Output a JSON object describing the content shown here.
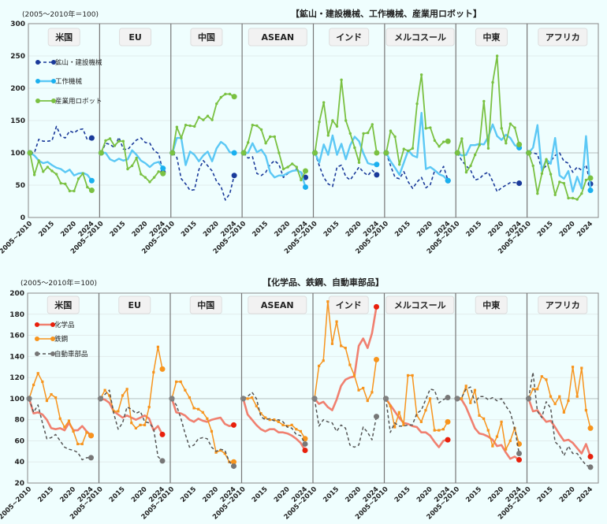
{
  "colors": {
    "background": "#effefe",
    "mining": "#1a3a9a",
    "tools": "#5bc8f5",
    "robots": "#7ac142",
    "chemicals": "#f08070",
    "chemicals_marker": "#e8200c",
    "steel": "#f7941d",
    "auto_parts": "#555555"
  },
  "chart_data": [
    {
      "type": "line",
      "title": "【鉱山・建設機械、工作機械、産業用ロボット】",
      "unit_label": "(2005～2010年＝100)",
      "ylim": [
        0,
        300
      ],
      "yticks": [
        0,
        50,
        100,
        150,
        200,
        250,
        300
      ],
      "grid": true,
      "legend_placement": "top-left panel",
      "x": [
        "2005~2010",
        "2011",
        "2012",
        "2013",
        "2014",
        "2015",
        "2016",
        "2017",
        "2018",
        "2019",
        "2020",
        "2021",
        "2022",
        "2023",
        "2024"
      ],
      "xtick_labels": [
        "2005~2010",
        "2015",
        "2020",
        "2024"
      ],
      "series_names": [
        "鉱山・建設機械",
        "工作機械",
        "産業用ロボット"
      ],
      "series_styles": [
        "dashed",
        "solid",
        "solid-marker"
      ],
      "panels": [
        {
          "name": "米国",
          "series": [
            [
              100,
              100,
              121,
              118,
              118,
              119,
              141,
              126,
              123,
              134,
              131,
              136,
              137,
              120,
              123
            ],
            [
              100,
              96,
              88,
              84,
              86,
              81,
              77,
              75,
              70,
              74,
              65,
              68,
              69,
              66,
              57
            ],
            [
              100,
              66,
              88,
              71,
              78,
              72,
              67,
              53,
              52,
              41,
              41,
              60,
              68,
              47,
              42
            ]
          ]
        },
        {
          "name": "EU",
          "series": [
            [
              100,
              115,
              113,
              108,
              124,
              106,
              105,
              113,
              120,
              123,
              116,
              115,
              103,
              99,
              70
            ],
            [
              100,
              100,
              90,
              87,
              91,
              88,
              90,
              104,
              97,
              88,
              84,
              78,
              84,
              86,
              76
            ],
            [
              100,
              119,
              122,
              111,
              118,
              118,
              75,
              80,
              92,
              67,
              62,
              55,
              62,
              71,
              68
            ]
          ]
        },
        {
          "name": "中国",
          "series": [
            [
              100,
              93,
              60,
              52,
              42,
              43,
              74,
              88,
              80,
              72,
              56,
              48,
              27,
              37,
              65
            ],
            [
              100,
              123,
              123,
              81,
              102,
              97,
              87,
              96,
              102,
              87,
              107,
              117,
              112,
              101,
              100
            ],
            [
              100,
              140,
              123,
              143,
              142,
              141,
              155,
              151,
              157,
              151,
              176,
              186,
              191,
              191,
              187
            ]
          ]
        },
        {
          "name": "ASEAN",
          "series": [
            [
              100,
              92,
              94,
              68,
              65,
              70,
              82,
              88,
              82,
              62,
              68,
              72,
              75,
              70,
              62
            ],
            [
              100,
              100,
              115,
              101,
              105,
              95,
              70,
              62,
              65,
              65,
              69,
              72,
              73,
              70,
              47
            ],
            [
              100,
              116,
              143,
              142,
              136,
              115,
              125,
              125,
              100,
              75,
              78,
              83,
              78,
              58,
              72
            ]
          ]
        },
        {
          "name": "インド",
          "series": [
            [
              100,
              80,
              62,
              52,
              48,
              78,
              81,
              63,
              58,
              68,
              78,
              70,
              65,
              73,
              66
            ],
            [
              100,
              85,
              113,
              97,
              127,
              97,
              114,
              90,
              112,
              125,
              118,
              99,
              84,
              82,
              82
            ],
            [
              100,
              148,
              178,
              127,
              150,
              141,
              213,
              150,
              130,
              108,
              85,
              130,
              131,
              144,
              100
            ]
          ]
        },
        {
          "name": "メルコスール",
          "series": [
            [
              100,
              80,
              62,
              60,
              71,
              55,
              45,
              55,
              62,
              46,
              51,
              73,
              68,
              79,
              57
            ],
            [
              100,
              87,
              77,
              66,
              85,
              104,
              96,
              93,
              162,
              75,
              78,
              73,
              67,
              64,
              57
            ],
            [
              100,
              134,
              125,
              82,
              106,
              103,
              107,
              176,
              221,
              138,
              139,
              119,
              110,
              117,
              118
            ]
          ]
        },
        {
          "name": "中東",
          "series": [
            [
              100,
              88,
              80,
              73,
              58,
              60,
              67,
              70,
              56,
              40,
              46,
              50,
              54,
              54,
              53
            ],
            [
              100,
              96,
              97,
              112,
              112,
              114,
              113,
              125,
              144,
              126,
              120,
              128,
              123,
              112,
              108
            ],
            [
              100,
              122,
              70,
              80,
              97,
              112,
              180,
              107,
              209,
              250,
              138,
              115,
              145,
              139,
              113
            ]
          ]
        },
        {
          "name": "アフリカ",
          "series": [
            [
              100,
              100,
              98,
              74,
              80,
              87,
              96,
              100,
              87,
              84,
              70,
              78,
              73,
              81,
              52
            ],
            [
              100,
              108,
              143,
              72,
              90,
              83,
              123,
              65,
              60,
              72,
              40,
              63,
              45,
              126,
              42
            ],
            [
              100,
              80,
              37,
              68,
              90,
              67,
              35,
              55,
              53,
              30,
              30,
              28,
              37,
              58,
              61
            ]
          ]
        }
      ]
    },
    {
      "type": "line",
      "title": "【化学品、鉄鋼、自動車部品】",
      "unit_label": "(2005～2010年＝100)",
      "ylim": [
        20,
        200
      ],
      "yticks": [
        20,
        40,
        60,
        80,
        100,
        120,
        140,
        160,
        180,
        200
      ],
      "grid": true,
      "legend_placement": "top-left panel",
      "x": [
        "2005~2010",
        "2011",
        "2012",
        "2013",
        "2014",
        "2015",
        "2016",
        "2017",
        "2018",
        "2019",
        "2020",
        "2021",
        "2022",
        "2023",
        "2024"
      ],
      "xtick_labels": [
        "2005~2010",
        "2015",
        "2020",
        "2024"
      ],
      "series_names": [
        "化学品",
        "鉄鋼",
        "自動車部品"
      ],
      "series_styles": [
        "solid-thick",
        "solid-marker",
        "dashed"
      ],
      "panels": [
        {
          "name": "米国",
          "series": [
            [
              100,
              86,
              87,
              85,
              80,
              72,
              71,
              72,
              70,
              77,
              70,
              70,
              74,
              69,
              65
            ],
            [
              100,
              113,
              124,
              116,
              98,
              104,
              101,
              81,
              73,
              79,
              69,
              57,
              57,
              68,
              65
            ],
            [
              100,
              87,
              94,
              77,
              62,
              63,
              66,
              60,
              54,
              52,
              51,
              49,
              42,
              44,
              44
            ]
          ]
        },
        {
          "name": "EU",
          "series": [
            [
              100,
              99,
              96,
              88,
              85,
              82,
              84,
              82,
              80,
              82,
              84,
              81,
              70,
              74,
              66
            ],
            [
              100,
              108,
              103,
              88,
              88,
              103,
              109,
              77,
              72,
              75,
              75,
              92,
              125,
              149,
              128
            ],
            [
              100,
              104,
              108,
              86,
              71,
              77,
              92,
              90,
              86,
              88,
              78,
              77,
              72,
              45,
              41
            ]
          ]
        },
        {
          "name": "中国",
          "series": [
            [
              100,
              87,
              86,
              84,
              80,
              78,
              81,
              79,
              78,
              80,
              81,
              82,
              76,
              74,
              75
            ],
            [
              100,
              116,
              116,
              108,
              101,
              91,
              90,
              87,
              81,
              69,
              49,
              51,
              48,
              40,
              40
            ],
            [
              100,
              94,
              82,
              67,
              54,
              56,
              62,
              63,
              62,
              54,
              50,
              52,
              51,
              40,
              36
            ]
          ]
        },
        {
          "name": "ASEAN",
          "series": [
            [
              100,
              85,
              80,
              75,
              71,
              69,
              71,
              71,
              68,
              68,
              67,
              65,
              62,
              58,
              51
            ],
            [
              100,
              100,
              101,
              93,
              86,
              82,
              80,
              80,
              78,
              75,
              74,
              75,
              71,
              69,
              62
            ],
            [
              100,
              102,
              106,
              100,
              83,
              80,
              81,
              79,
              80,
              78,
              73,
              72,
              66,
              65,
              57
            ]
          ]
        },
        {
          "name": "インド",
          "series": [
            [
              100,
              95,
              97,
              92,
              89,
              99,
              112,
              118,
              120,
              121,
              150,
              157,
              148,
              162,
              187
            ],
            [
              100,
              131,
              136,
              192,
              152,
              173,
              150,
              148,
              132,
              122,
              108,
              110,
              98,
              106,
              137
            ],
            [
              100,
              74,
              80,
              78,
              77,
              69,
              75,
              72,
              56,
              54,
              56,
              73,
              68,
              61,
              83
            ]
          ]
        },
        {
          "name": "メルコスール",
          "series": [
            [
              100,
              94,
              88,
              82,
              77,
              76,
              74,
              73,
              68,
              68,
              65,
              59,
              54,
              60,
              61
            ],
            [
              100,
              93,
              73,
              87,
              75,
              122,
              122,
              84,
              78,
              89,
              100,
              70,
              70,
              71,
              78
            ],
            [
              100,
              68,
              77,
              74,
              74,
              75,
              75,
              86,
              89,
              99,
              109,
              108,
              96,
              99,
              101
            ]
          ]
        },
        {
          "name": "中東",
          "series": [
            [
              100,
              99,
              92,
              82,
              72,
              67,
              66,
              64,
              61,
              55,
              56,
              49,
              43,
              45,
              42
            ],
            [
              100,
              100,
              112,
              96,
              108,
              84,
              81,
              70,
              55,
              64,
              78,
              52,
              60,
              72,
              57
            ],
            [
              100,
              101,
              109,
              111,
              96,
              102,
              102,
              99,
              101,
              98,
              100,
              93,
              87,
              72,
              48
            ]
          ]
        },
        {
          "name": "アフリカ",
          "series": [
            [
              100,
              88,
              89,
              83,
              78,
              79,
              73,
              66,
              60,
              61,
              58,
              53,
              48,
              57,
              45
            ],
            [
              100,
              109,
              109,
              121,
              118,
              102,
              95,
              102,
              87,
              98,
              130,
              102,
              129,
              89,
              72
            ],
            [
              100,
              125,
              88,
              82,
              97,
              91,
              59,
              55,
              46,
              55,
              48,
              48,
              42,
              37,
              35
            ]
          ]
        }
      ]
    }
  ]
}
